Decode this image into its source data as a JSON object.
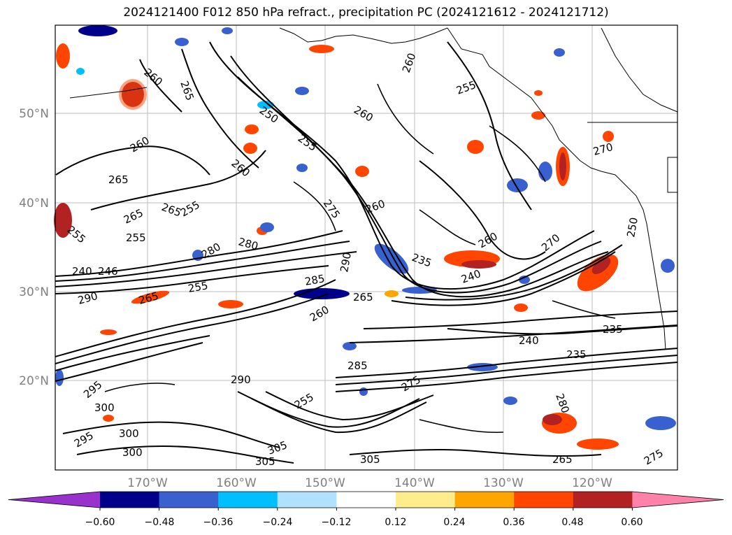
{
  "title": "2024121400 F012 850 hPa refract., precipitation PC (2024121612 - 2024121712)",
  "map": {
    "lat_labels": [
      "50°N",
      "40°N",
      "30°N",
      "20°N"
    ],
    "lon_labels": [
      "170°W",
      "160°W",
      "150°W",
      "140°W",
      "130°W",
      "120°W"
    ],
    "contour_labels": [
      "260",
      "265",
      "260",
      "255",
      "250",
      "260",
      "255",
      "260",
      "260",
      "265",
      "255",
      "265",
      "255",
      "265",
      "255",
      "240",
      "246",
      "290",
      "265",
      "280",
      "275",
      "260",
      "235",
      "240",
      "255",
      "280",
      "290",
      "285",
      "265",
      "260",
      "270",
      "270",
      "260",
      "250",
      "235",
      "240",
      "235",
      "285",
      "290",
      "295",
      "300",
      "295",
      "300",
      "300",
      "305",
      "305",
      "305",
      "275",
      "275",
      "280",
      "265",
      "255"
    ]
  },
  "colorbar": {
    "ticks": [
      "−0.60",
      "−0.48",
      "−0.36",
      "−0.24",
      "−0.12",
      "0.12",
      "0.24",
      "0.36",
      "0.48",
      "0.60"
    ],
    "colors": [
      "#9932cc",
      "#00008b",
      "#3860cf",
      "#00bfff",
      "#b0e2ff",
      "#ffffff",
      "#ffec8b",
      "#ffa500",
      "#ff4500",
      "#b22222",
      "#ff82ab"
    ]
  }
}
